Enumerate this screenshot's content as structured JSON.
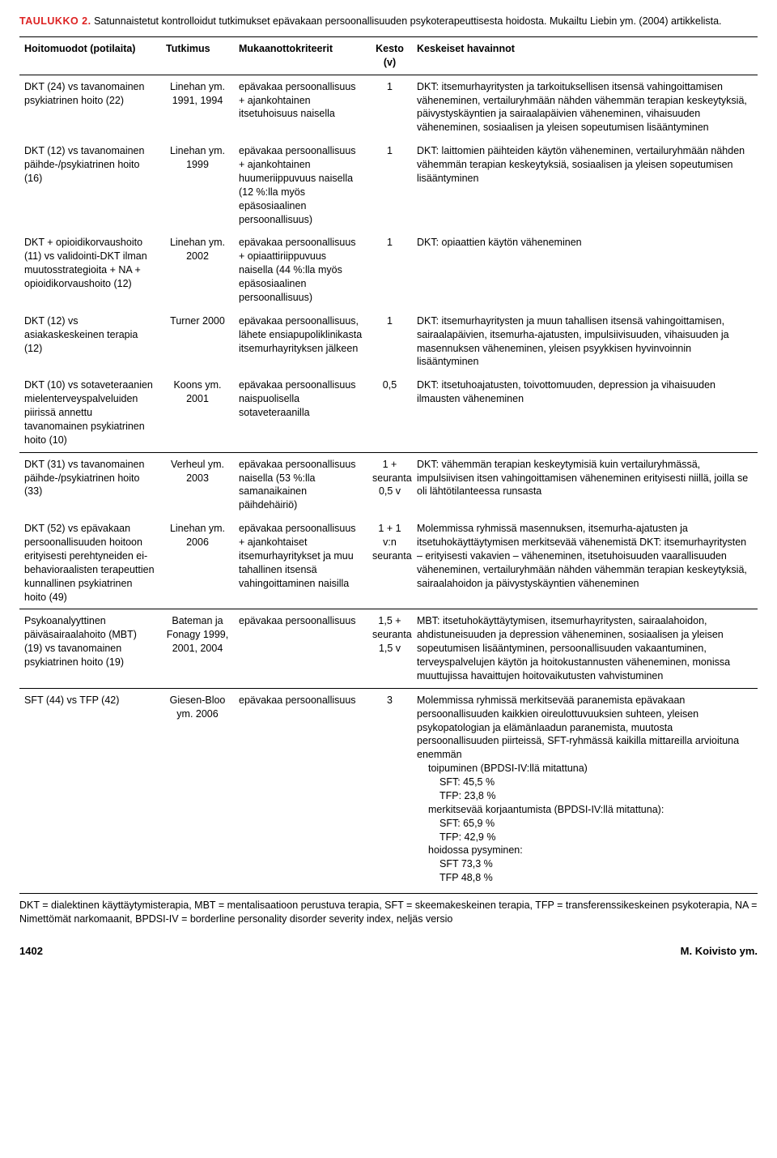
{
  "caption": {
    "label": "TAULUKKO 2.",
    "text": "Satunnaistetut kontrolloidut tutkimukset epävakaan persoonallisuuden psykoterapeuttisesta hoidosta. Mukailtu Liebin ym. (2004) artikkelista."
  },
  "headers": {
    "col1": "Hoitomuodot (potilaita)",
    "col2": "Tutkimus",
    "col3": "Mukaanottokriteerit",
    "col4a": "Kesto",
    "col4b": "(v)",
    "col5": "Keskeiset havainnot"
  },
  "rows": [
    {
      "hoito": "DKT (24) vs tavanomainen psykiatrinen hoito (22)",
      "tutkimus": "Linehan ym. 1991, 1994",
      "kriteerit": "epävakaa persoonallisuus + ajankohtainen itsetuhoisuus naisella",
      "kesto": "1",
      "havainnot": "DKT: itsemurhayritysten ja tarkoituksellisen itsensä vahingoittamisen väheneminen, vertailuryhmään nähden vähemmän terapian keskeytyksiä, päivystyskäyntien ja sairaalapäivien väheneminen, vihaisuuden väheneminen, sosiaalisen ja yleisen sopeutumisen lisääntyminen",
      "sep": true
    },
    {
      "hoito": "DKT (12) vs tavanomainen päihde-/psykiatrinen hoito (16)",
      "tutkimus": "Linehan ym. 1999",
      "kriteerit": "epävakaa persoonallisuus + ajankohtainen huumeriippuvuus naisella (12 %:lla myös epäsosiaalinen persoonallisuus)",
      "kesto": "1",
      "havainnot": "DKT: laittomien päihteiden käytön väheneminen, vertailuryhmään nähden vähemmän terapian keskeytyksiä, sosiaalisen ja yleisen sopeutumisen lisääntyminen",
      "sep": false
    },
    {
      "hoito": "DKT + opioidikorvaushoito (11) vs validointi-DKT ilman muutosstrategioita + NA + opioidikorvaushoito (12)",
      "tutkimus": "Linehan ym. 2002",
      "kriteerit": "epävakaa persoonallisuus + opiaattiriippuvuus naisella (44 %:lla myös epäsosiaalinen persoonallisuus)",
      "kesto": "1",
      "havainnot": "DKT: opiaattien käytön väheneminen",
      "sep": false
    },
    {
      "hoito": "DKT (12) vs asiakaskeskeinen terapia (12)",
      "tutkimus": "Turner 2000",
      "kriteerit": "epävakaa persoonallisuus, lähete ensiapupoliklinikasta itsemurhayrityksen jälkeen",
      "kesto": "1",
      "havainnot": "DKT: itsemurhayritysten ja muun tahallisen itsensä vahingoittamisen, sairaalapäivien, itsemurha-ajatusten, impulsiivisuuden, vihaisuuden ja masennuksen väheneminen, yleisen psyykkisen hyvinvoinnin lisääntyminen",
      "sep": false
    },
    {
      "hoito": "DKT (10) vs sotaveteraanien mielenterveyspalveluiden piirissä annettu tavanomainen psykiatrinen hoito (10)",
      "tutkimus": "Koons ym. 2001",
      "kriteerit": "epävakaa persoonallisuus naispuolisella sotaveteraanilla",
      "kesto": "0,5",
      "havainnot": "DKT: itsetuhoajatusten, toivottomuuden, depression ja vihaisuuden ilmausten väheneminen",
      "sep": false
    },
    {
      "hoito": "DKT (31) vs tavanomainen päihde-/psykiatrinen hoito (33)",
      "tutkimus": "Verheul ym. 2003",
      "kriteerit": "epävakaa persoonallisuus naisella (53 %:lla samanaikainen päihdehäiriö)",
      "kesto": "1 + seuranta 0,5 v",
      "havainnot": "DKT: vähemmän terapian keskeytymisiä kuin vertailuryhmässä, impulsiivisen itsen vahingoittamisen väheneminen erityisesti niillä, joilla se oli lähtötilanteessa runsasta",
      "sep": true
    },
    {
      "hoito": "DKT (52) vs epävakaan persoonallisuuden hoitoon erityisesti perehtyneiden ei-behavioraalisten terapeuttien kunnallinen psykiatrinen hoito (49)",
      "tutkimus": "Linehan ym. 2006",
      "kriteerit": "epävakaa persoonallisuus + ajankohtaiset itsemurhayritykset ja muu tahallinen itsensä vahingoittaminen naisilla",
      "kesto": "1 + 1 v:n seuranta",
      "havainnot": "Molemmissa ryhmissä masennuksen, itsemurha-ajatusten ja itsetuhokäyttäytymisen merkitsevää vähenemistä\nDKT: itsemurhayritysten – erityisesti vakavien – väheneminen, itsetuhoisuuden vaarallisuuden väheneminen, vertailuryhmään nähden vähemmän terapian keskeytyksiä, sairaalahoidon ja päivystyskäyntien väheneminen",
      "sep": false
    },
    {
      "hoito": "Psykoanalyyttinen päiväsairaalahoito (MBT) (19) vs tavanomainen psykiatrinen hoito (19)",
      "tutkimus": "Bateman ja Fonagy 1999, 2001, 2004",
      "kriteerit": "epävakaa persoonallisuus",
      "kesto": "1,5 + seuranta 1,5 v",
      "havainnot": "MBT: itsetuhokäyttäytymisen, itsemurhayritysten, sairaalahoidon, ahdistuneisuuden ja depression väheneminen, sosiaalisen ja yleisen sopeutumisen lisääntyminen, persoonallisuuden vakaantuminen, terveyspalvelujen käytön ja hoitokustannusten väheneminen, monissa muuttujissa havaittujen hoitovaikutusten vahvistuminen",
      "sep": true
    }
  ],
  "row9": {
    "hoito": "SFT (44) vs TFP (42)",
    "tutkimus": "Giesen-Bloo ym. 2006",
    "kriteerit": "epävakaa persoonallisuus",
    "kesto": "3",
    "hav_main": "Molemmissa ryhmissä merkitsevää paranemista epävakaan persoonallisuuden kaikkien oireulottuvuuksien suhteen, yleisen psykopatologian ja elämänlaadun paranemista, muutosta persoonallisuuden piirteissä, SFT-ryhmässä kaikilla mittareilla arvioituna enemmän",
    "hav_l1": "toipuminen (BPDSI-IV:llä mitattuna)",
    "hav_l2": "SFT: 45,5 %",
    "hav_l3": "TFP: 23,8 %",
    "hav_l4": "merkitsevää korjaantumista (BPDSI-IV:llä mitattuna):",
    "hav_l5": "SFT: 65,9 %",
    "hav_l6": "TFP: 42,9 %",
    "hav_l7": "hoidossa pysyminen:",
    "hav_l8": "SFT 73,3 %",
    "hav_l9": "TFP 48,8 %"
  },
  "footnote": "DKT = dialektinen käyttäytymisterapia, MBT = mentalisaatioon perustuva terapia, SFT = skeemakeskeinen terapia, TFP = transferenssikeskeinen psykoterapia, NA = Nimettömät narkomaanit, BPDSI-IV = borderline personality disorder severity index, neljäs versio",
  "footer": {
    "page": "1402",
    "author": "M. Koivisto ym."
  }
}
